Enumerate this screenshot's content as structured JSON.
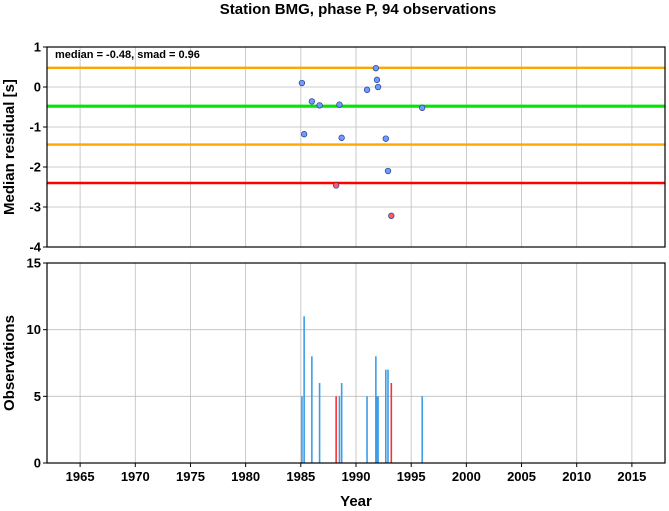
{
  "title": "Station BMG, phase P, 94 observations",
  "chart_data": [
    {
      "type": "scatter",
      "ylabel": "Median residual [s]",
      "xlim": [
        1962,
        2018
      ],
      "ylim": [
        -4,
        1
      ],
      "yticks": [
        1,
        0,
        -1,
        -2,
        -3,
        -4
      ],
      "grid": true,
      "annotation": "median = -0.48, smad = 0.96",
      "reference_lines": [
        {
          "value": 0.48,
          "color": "#ffa500"
        },
        {
          "value": -0.48,
          "color": "#00e600"
        },
        {
          "value": -1.44,
          "color": "#ffa500"
        },
        {
          "value": -2.4,
          "color": "#ff0000"
        }
      ],
      "points": [
        {
          "x": 1985.1,
          "y": 0.1,
          "outlier": false
        },
        {
          "x": 1985.3,
          "y": -1.18,
          "outlier": false
        },
        {
          "x": 1986.0,
          "y": -0.36,
          "outlier": false
        },
        {
          "x": 1986.7,
          "y": -0.46,
          "outlier": false
        },
        {
          "x": 1988.2,
          "y": -2.46,
          "outlier": true
        },
        {
          "x": 1988.5,
          "y": -0.44,
          "outlier": false
        },
        {
          "x": 1988.7,
          "y": -1.27,
          "outlier": false
        },
        {
          "x": 1991.0,
          "y": -0.07,
          "outlier": false
        },
        {
          "x": 1991.8,
          "y": 0.47,
          "outlier": false
        },
        {
          "x": 1991.9,
          "y": 0.18,
          "outlier": false
        },
        {
          "x": 1992.0,
          "y": 0.0,
          "outlier": false
        },
        {
          "x": 1992.7,
          "y": -1.29,
          "outlier": false
        },
        {
          "x": 1992.9,
          "y": -2.1,
          "outlier": false
        },
        {
          "x": 1993.2,
          "y": -3.22,
          "outlier": true
        },
        {
          "x": 1996.0,
          "y": -0.52,
          "outlier": false
        }
      ],
      "colors": {
        "normal": "#6c9cff",
        "outlier": "#ff5c5c"
      }
    },
    {
      "type": "bar",
      "xlabel": "Year",
      "ylabel": "Observations",
      "xlim": [
        1962,
        2018
      ],
      "ylim": [
        0,
        15
      ],
      "yticks": [
        15,
        10,
        5,
        0
      ],
      "xticks": [
        1965,
        1970,
        1975,
        1980,
        1985,
        1990,
        1995,
        2000,
        2005,
        2010,
        2015
      ],
      "grid": true,
      "bars": [
        {
          "x": 1985.1,
          "value": 5,
          "outlier": false
        },
        {
          "x": 1985.3,
          "value": 11,
          "outlier": false
        },
        {
          "x": 1986.0,
          "value": 8,
          "outlier": false
        },
        {
          "x": 1986.7,
          "value": 6,
          "outlier": false
        },
        {
          "x": 1988.2,
          "value": 5,
          "outlier": true
        },
        {
          "x": 1988.5,
          "value": 5,
          "outlier": false
        },
        {
          "x": 1988.7,
          "value": 6,
          "outlier": false
        },
        {
          "x": 1991.0,
          "value": 5,
          "outlier": false
        },
        {
          "x": 1991.8,
          "value": 8,
          "outlier": false
        },
        {
          "x": 1991.9,
          "value": 5,
          "outlier": false
        },
        {
          "x": 1992.0,
          "value": 5,
          "outlier": false
        },
        {
          "x": 1992.7,
          "value": 7,
          "outlier": false
        },
        {
          "x": 1992.9,
          "value": 7,
          "outlier": false
        },
        {
          "x": 1993.2,
          "value": 6,
          "outlier": true
        },
        {
          "x": 1996.0,
          "value": 5,
          "outlier": false
        }
      ],
      "colors": {
        "normal": "#3a9ee8",
        "outlier": "#ff3030"
      }
    }
  ]
}
